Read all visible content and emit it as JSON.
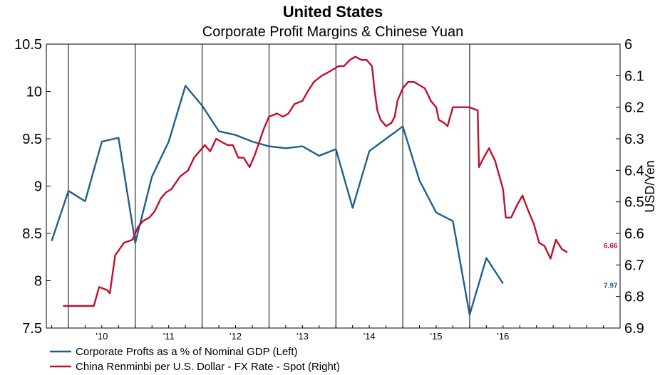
{
  "chart_data": {
    "type": "line",
    "title": "United States",
    "subtitle": "Corporate Profit Margins & Chinese Yuan",
    "ylabel_right": "USD/Yen",
    "x_tick_labels": [
      "'10",
      "'11",
      "'12",
      "'13",
      "'14",
      "'15",
      "'16"
    ],
    "y_left": {
      "min": 7.5,
      "max": 10.5,
      "ticks": [
        "7.5",
        "8",
        "8.5",
        "9",
        "9.5",
        "10",
        "10.5"
      ]
    },
    "y_right": {
      "min": 6.0,
      "max": 6.9,
      "inverted": true,
      "ticks": [
        "6",
        "6.1",
        "6.2",
        "6.3",
        "6.4",
        "6.5",
        "6.6",
        "6.7",
        "6.8",
        "6.9"
      ]
    },
    "grid": "vertical",
    "legend_position": "bottom-left",
    "colors": {
      "profits": "#1f5f8b",
      "yuan": "#c0102a"
    },
    "series": [
      {
        "name": "Corporate Profts as a % of Nominal GDP  (Left)",
        "axis": "left",
        "end_label": "7.97",
        "points": [
          [
            2009.25,
            8.42
          ],
          [
            2009.5,
            8.95
          ],
          [
            2009.75,
            8.84
          ],
          [
            2010.0,
            9.47
          ],
          [
            2010.25,
            9.51
          ],
          [
            2010.5,
            8.4
          ],
          [
            2010.75,
            9.1
          ],
          [
            2011.0,
            9.47
          ],
          [
            2011.25,
            10.06
          ],
          [
            2011.5,
            9.85
          ],
          [
            2011.75,
            9.58
          ],
          [
            2012.0,
            9.54
          ],
          [
            2012.25,
            9.47
          ],
          [
            2012.5,
            9.42
          ],
          [
            2012.75,
            9.4
          ],
          [
            2013.0,
            9.42
          ],
          [
            2013.25,
            9.32
          ],
          [
            2013.5,
            9.39
          ],
          [
            2013.75,
            8.77
          ],
          [
            2014.0,
            9.37
          ],
          [
            2014.25,
            9.5
          ],
          [
            2014.5,
            9.63
          ],
          [
            2014.75,
            9.06
          ],
          [
            2015.0,
            8.72
          ],
          [
            2015.25,
            8.63
          ],
          [
            2015.5,
            7.64
          ],
          [
            2015.75,
            8.24
          ],
          [
            2016.0,
            7.97
          ]
        ]
      },
      {
        "name": "China Renminbi per U.S. Dollar - FX Rate - Spot  (Right)",
        "axis": "right",
        "end_label": "6.66",
        "points": [
          [
            2009.42,
            6.83
          ],
          [
            2009.7,
            6.83
          ],
          [
            2009.88,
            6.83
          ],
          [
            2009.96,
            6.77
          ],
          [
            2010.08,
            6.78
          ],
          [
            2010.12,
            6.79
          ],
          [
            2010.2,
            6.67
          ],
          [
            2010.33,
            6.63
          ],
          [
            2010.46,
            6.62
          ],
          [
            2010.54,
            6.58
          ],
          [
            2010.62,
            6.56
          ],
          [
            2010.71,
            6.55
          ],
          [
            2010.79,
            6.53
          ],
          [
            2010.88,
            6.49
          ],
          [
            2010.96,
            6.47
          ],
          [
            2011.04,
            6.46
          ],
          [
            2011.17,
            6.42
          ],
          [
            2011.29,
            6.4
          ],
          [
            2011.38,
            6.36
          ],
          [
            2011.46,
            6.34
          ],
          [
            2011.54,
            6.32
          ],
          [
            2011.62,
            6.34
          ],
          [
            2011.71,
            6.3
          ],
          [
            2011.79,
            6.31
          ],
          [
            2011.88,
            6.32
          ],
          [
            2011.96,
            6.32
          ],
          [
            2012.04,
            6.36
          ],
          [
            2012.12,
            6.36
          ],
          [
            2012.21,
            6.39
          ],
          [
            2012.29,
            6.35
          ],
          [
            2012.42,
            6.27
          ],
          [
            2012.5,
            6.23
          ],
          [
            2012.62,
            6.22
          ],
          [
            2012.71,
            6.23
          ],
          [
            2012.79,
            6.22
          ],
          [
            2012.88,
            6.19
          ],
          [
            2013.0,
            6.18
          ],
          [
            2013.08,
            6.15
          ],
          [
            2013.17,
            6.12
          ],
          [
            2013.29,
            6.1
          ],
          [
            2013.38,
            6.09
          ],
          [
            2013.46,
            6.08
          ],
          [
            2013.54,
            6.07
          ],
          [
            2013.62,
            6.07
          ],
          [
            2013.71,
            6.05
          ],
          [
            2013.79,
            6.04
          ],
          [
            2013.88,
            6.05
          ],
          [
            2013.96,
            6.05
          ],
          [
            2014.04,
            6.07
          ],
          [
            2014.08,
            6.15
          ],
          [
            2014.12,
            6.21
          ],
          [
            2014.17,
            6.24
          ],
          [
            2014.25,
            6.26
          ],
          [
            2014.33,
            6.25
          ],
          [
            2014.38,
            6.23
          ],
          [
            2014.42,
            6.18
          ],
          [
            2014.5,
            6.14
          ],
          [
            2014.58,
            6.12
          ],
          [
            2014.67,
            6.12
          ],
          [
            2014.75,
            6.13
          ],
          [
            2014.83,
            6.14
          ],
          [
            2014.92,
            6.18
          ],
          [
            2015.0,
            6.2
          ],
          [
            2015.04,
            6.24
          ],
          [
            2015.12,
            6.25
          ],
          [
            2015.17,
            6.26
          ],
          [
            2015.25,
            6.2
          ],
          [
            2015.33,
            6.2
          ],
          [
            2015.42,
            6.2
          ],
          [
            2015.5,
            6.2
          ],
          [
            2015.62,
            6.21
          ],
          [
            2015.64,
            6.39
          ],
          [
            2015.71,
            6.36
          ],
          [
            2015.79,
            6.33
          ],
          [
            2015.88,
            6.37
          ],
          [
            2016.0,
            6.46
          ],
          [
            2016.04,
            6.55
          ],
          [
            2016.12,
            6.55
          ],
          [
            2016.21,
            6.51
          ],
          [
            2016.29,
            6.48
          ],
          [
            2016.38,
            6.53
          ],
          [
            2016.46,
            6.57
          ],
          [
            2016.54,
            6.63
          ],
          [
            2016.62,
            6.64
          ],
          [
            2016.71,
            6.68
          ],
          [
            2016.79,
            6.62
          ],
          [
            2016.88,
            6.65
          ],
          [
            2016.96,
            6.66
          ]
        ]
      }
    ]
  }
}
